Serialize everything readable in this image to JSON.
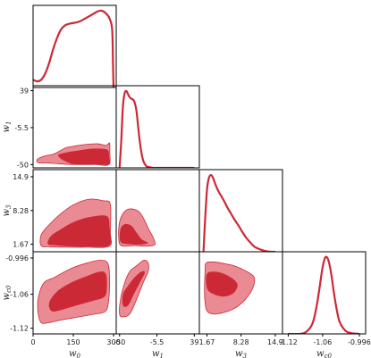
{
  "chart_data": {
    "type": "corner",
    "parameters": [
      {
        "id": "w0",
        "label": "w",
        "sub": "0",
        "ticks": [
          "0",
          "150",
          "300"
        ],
        "tick_values": [
          0,
          150,
          300
        ],
        "range": [
          0,
          310
        ]
      },
      {
        "id": "w1",
        "label": "w",
        "sub": "1",
        "ticks": [
          "-50",
          "-5.5",
          "39"
        ],
        "tick_values": [
          -50,
          -5.5,
          39
        ],
        "range": [
          -54,
          45
        ]
      },
      {
        "id": "w3",
        "label": "w",
        "sub": "3",
        "ticks": [
          "1.67",
          "8.28",
          "14.9"
        ],
        "tick_values": [
          1.67,
          8.28,
          14.9
        ],
        "range": [
          0.2,
          16.3
        ]
      },
      {
        "id": "wc0",
        "label": "w",
        "sub": "c0",
        "ticks": [
          "-1.12",
          "-1.06",
          "-0.996"
        ],
        "tick_values": [
          -1.12,
          -1.06,
          -0.996
        ],
        "range": [
          -1.13,
          -0.985
        ]
      }
    ],
    "colors": {
      "line": "#cc2936",
      "contour_inner": "#cc2936",
      "contour_outer": "#ea8b93"
    },
    "marginals": [
      {
        "param": "w0",
        "x": [
          0,
          15,
          30,
          45,
          60,
          75,
          90,
          105,
          120,
          135,
          150,
          165,
          180,
          195,
          210,
          225,
          240,
          255,
          270,
          285,
          295,
          298,
          300
        ],
        "density": [
          0.1,
          0.08,
          0.1,
          0.18,
          0.32,
          0.5,
          0.65,
          0.76,
          0.81,
          0.83,
          0.84,
          0.85,
          0.87,
          0.9,
          0.93,
          0.96,
          0.99,
          1.0,
          0.97,
          0.9,
          0.75,
          0.3,
          0.0
        ]
      },
      {
        "param": "w1",
        "x": [
          -50,
          -48,
          -46,
          -44,
          -42,
          -40,
          -38,
          -36,
          -34,
          -32,
          -30,
          -28,
          -26,
          -24,
          -22,
          -20,
          -18,
          -15,
          -10,
          -5.5,
          0,
          10,
          39
        ],
        "density": [
          0.0,
          0.35,
          0.8,
          0.97,
          1.0,
          0.96,
          0.92,
          0.9,
          0.89,
          0.85,
          0.75,
          0.55,
          0.35,
          0.2,
          0.1,
          0.05,
          0.02,
          0.01,
          0.0,
          0.0,
          0.0,
          0.0,
          0.0
        ]
      },
      {
        "param": "w3",
        "x": [
          1.0,
          1.3,
          1.67,
          2.0,
          2.4,
          2.8,
          3.3,
          3.8,
          4.4,
          5.0,
          5.6,
          6.3,
          7.0,
          7.8,
          8.5,
          9.3,
          10.2,
          11.0,
          12.0,
          13.0,
          14.0,
          14.9
        ],
        "density": [
          0.0,
          0.4,
          0.8,
          0.95,
          1.0,
          0.97,
          0.88,
          0.8,
          0.73,
          0.66,
          0.58,
          0.5,
          0.42,
          0.34,
          0.26,
          0.18,
          0.11,
          0.06,
          0.03,
          0.01,
          0.0,
          0.0
        ]
      },
      {
        "param": "wc0",
        "x": [
          -1.12,
          -1.1,
          -1.09,
          -1.08,
          -1.075,
          -1.07,
          -1.065,
          -1.06,
          -1.055,
          -1.05,
          -1.045,
          -1.04,
          -1.035,
          -1.03,
          -1.02,
          -1.01,
          -0.996
        ],
        "density": [
          0.0,
          0.0,
          0.02,
          0.1,
          0.2,
          0.38,
          0.62,
          0.87,
          1.0,
          0.96,
          0.78,
          0.52,
          0.3,
          0.15,
          0.04,
          0.01,
          0.0
        ]
      }
    ],
    "contours": [
      {
        "x": "w0",
        "y": "w1",
        "outer": [
          [
            15,
            -44
          ],
          [
            40,
            -40
          ],
          [
            80,
            -37
          ],
          [
            120,
            -30
          ],
          [
            150,
            -28
          ],
          [
            190,
            -26
          ],
          [
            240,
            -25
          ],
          [
            272,
            -27
          ],
          [
            285,
            -24
          ],
          [
            286,
            -34
          ],
          [
            282,
            -50
          ],
          [
            230,
            -50
          ],
          [
            150,
            -50
          ],
          [
            90,
            -49
          ],
          [
            50,
            -48
          ],
          [
            20,
            -48
          ]
        ],
        "inner": [
          [
            95,
            -38
          ],
          [
            130,
            -35
          ],
          [
            170,
            -33
          ],
          [
            215,
            -31
          ],
          [
            260,
            -31
          ],
          [
            280,
            -33
          ],
          [
            284,
            -42
          ],
          [
            285,
            -50
          ],
          [
            240,
            -50
          ],
          [
            160,
            -50
          ],
          [
            120,
            -46
          ],
          [
            100,
            -42
          ]
        ]
      },
      {
        "x": "w0",
        "y": "w3",
        "outer": [
          [
            30,
            1.4
          ],
          [
            30,
            3.5
          ],
          [
            60,
            5.5
          ],
          [
            100,
            7.5
          ],
          [
            150,
            9.4
          ],
          [
            210,
            10.5
          ],
          [
            262,
            10.2
          ],
          [
            288,
            9.5
          ],
          [
            288,
            4.0
          ],
          [
            285,
            1.3
          ],
          [
            200,
            1.1
          ],
          [
            120,
            1.1
          ],
          [
            60,
            1.2
          ]
        ],
        "inner": [
          [
            55,
            1.7
          ],
          [
            65,
            3.2
          ],
          [
            100,
            4.5
          ],
          [
            150,
            6.0
          ],
          [
            210,
            7.0
          ],
          [
            275,
            7.2
          ],
          [
            285,
            5.0
          ],
          [
            285,
            1.5
          ],
          [
            200,
            1.2
          ],
          [
            120,
            1.3
          ],
          [
            80,
            1.5
          ]
        ]
      },
      {
        "x": "w0",
        "y": "wc0",
        "outer": [
          [
            20,
            -1.065
          ],
          [
            40,
            -1.04
          ],
          [
            80,
            -1.03
          ],
          [
            140,
            -1.015
          ],
          [
            200,
            -1.005
          ],
          [
            250,
            -1.0
          ],
          [
            278,
            -1.005
          ],
          [
            285,
            -1.03
          ],
          [
            282,
            -1.07
          ],
          [
            270,
            -1.09
          ],
          [
            230,
            -1.095
          ],
          [
            170,
            -1.1
          ],
          [
            110,
            -1.105
          ],
          [
            60,
            -1.11
          ],
          [
            30,
            -1.11
          ],
          [
            18,
            -1.09
          ]
        ],
        "inner": [
          [
            60,
            -1.075
          ],
          [
            90,
            -1.055
          ],
          [
            140,
            -1.04
          ],
          [
            200,
            -1.028
          ],
          [
            250,
            -1.02
          ],
          [
            272,
            -1.025
          ],
          [
            275,
            -1.05
          ],
          [
            265,
            -1.065
          ],
          [
            220,
            -1.072
          ],
          [
            160,
            -1.08
          ],
          [
            110,
            -1.087
          ],
          [
            70,
            -1.09
          ]
        ]
      },
      {
        "x": "w1",
        "y": "w3",
        "outer": [
          [
            -50,
            6.0
          ],
          [
            -45,
            7.9
          ],
          [
            -38,
            8.6
          ],
          [
            -28,
            8.2
          ],
          [
            -22,
            6.9
          ],
          [
            -15,
            4.5
          ],
          [
            -10,
            3.0
          ],
          [
            -8,
            1.6
          ],
          [
            -18,
            1.3
          ],
          [
            -32,
            1.4
          ],
          [
            -48,
            1.4
          ],
          [
            -51,
            3.0
          ]
        ],
        "inner": [
          [
            -49,
            4.6
          ],
          [
            -44,
            5.6
          ],
          [
            -36,
            5.3
          ],
          [
            -30,
            4.0
          ],
          [
            -24,
            2.7
          ],
          [
            -16,
            1.9
          ],
          [
            -26,
            1.6
          ],
          [
            -40,
            1.7
          ],
          [
            -49,
            2.2
          ]
        ]
      },
      {
        "x": "w1",
        "y": "wc0",
        "outer": [
          [
            -49,
            -1.07
          ],
          [
            -44,
            -1.04
          ],
          [
            -38,
            -1.02
          ],
          [
            -30,
            -1.01
          ],
          [
            -21,
            -1.0
          ],
          [
            -16,
            -1.005
          ],
          [
            -16,
            -1.02
          ],
          [
            -22,
            -1.04
          ],
          [
            -30,
            -1.07
          ],
          [
            -38,
            -1.095
          ],
          [
            -46,
            -1.1
          ],
          [
            -50,
            -1.095
          ]
        ],
        "inner": [
          [
            -46,
            -1.06
          ],
          [
            -40,
            -1.045
          ],
          [
            -32,
            -1.03
          ],
          [
            -24,
            -1.02
          ],
          [
            -20,
            -1.022
          ],
          [
            -26,
            -1.04
          ],
          [
            -33,
            -1.06
          ],
          [
            -40,
            -1.08
          ],
          [
            -46,
            -1.08
          ]
        ]
      },
      {
        "x": "w3",
        "y": "wc0",
        "outer": [
          [
            1.3,
            -1.02
          ],
          [
            1.5,
            -1.005
          ],
          [
            3.0,
            -1.003
          ],
          [
            5.0,
            -1.006
          ],
          [
            7.0,
            -1.01
          ],
          [
            9.0,
            -1.018
          ],
          [
            10.8,
            -1.03
          ],
          [
            10.5,
            -1.05
          ],
          [
            9.0,
            -1.07
          ],
          [
            7.0,
            -1.085
          ],
          [
            5.0,
            -1.092
          ],
          [
            3.0,
            -1.095
          ],
          [
            1.6,
            -1.088
          ],
          [
            1.2,
            -1.06
          ]
        ],
        "inner": [
          [
            1.6,
            -1.025
          ],
          [
            3.0,
            -1.02
          ],
          [
            5.0,
            -1.024
          ],
          [
            7.0,
            -1.035
          ],
          [
            7.6,
            -1.045
          ],
          [
            6.8,
            -1.058
          ],
          [
            5.0,
            -1.064
          ],
          [
            3.0,
            -1.06
          ],
          [
            1.7,
            -1.05
          ]
        ]
      }
    ]
  }
}
